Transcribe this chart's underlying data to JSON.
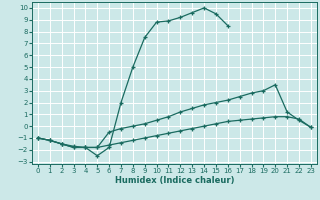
{
  "xlabel": "Humidex (Indice chaleur)",
  "bg_color": "#cce8e8",
  "grid_color": "#ffffff",
  "line_color": "#1a6b60",
  "xlim": [
    -0.5,
    23.5
  ],
  "ylim": [
    -3.2,
    10.5
  ],
  "xticks": [
    0,
    1,
    2,
    3,
    4,
    5,
    6,
    7,
    8,
    9,
    10,
    11,
    12,
    13,
    14,
    15,
    16,
    17,
    18,
    19,
    20,
    21,
    22,
    23
  ],
  "yticks": [
    -3,
    -2,
    -1,
    0,
    1,
    2,
    3,
    4,
    5,
    6,
    7,
    8,
    9,
    10
  ],
  "lines": [
    {
      "x": [
        0,
        1,
        2,
        3,
        4,
        5,
        6,
        7,
        8,
        9,
        10,
        11,
        12,
        13,
        14,
        15,
        16
      ],
      "y": [
        -1,
        -1.2,
        -1.5,
        -1.7,
        -1.8,
        -2.5,
        -1.8,
        2.0,
        5.0,
        7.5,
        8.8,
        8.9,
        9.2,
        9.6,
        10.0,
        9.5,
        8.5
      ]
    },
    {
      "x": [
        0,
        1,
        2,
        3,
        4,
        5,
        6,
        7,
        8,
        9,
        10,
        11,
        12,
        13,
        14,
        15,
        16,
        17,
        18,
        19,
        20,
        21,
        22,
        23
      ],
      "y": [
        -1,
        -1.2,
        -1.5,
        -1.8,
        -1.8,
        -1.8,
        -0.5,
        -0.2,
        -0.0,
        0.2,
        0.5,
        0.8,
        1.2,
        1.5,
        1.8,
        2.0,
        2.2,
        2.5,
        2.8,
        3.0,
        3.5,
        1.2,
        0.5,
        -0.1
      ]
    },
    {
      "x": [
        0,
        1,
        2,
        3,
        4,
        5,
        6,
        7,
        8,
        9,
        10,
        11,
        12,
        13,
        14,
        15,
        16,
        17,
        18,
        19,
        20,
        21,
        22,
        23
      ],
      "y": [
        -1,
        -1.2,
        -1.5,
        -1.8,
        -1.8,
        -1.8,
        -1.6,
        -1.4,
        -1.2,
        -1.0,
        -0.8,
        -0.6,
        -0.4,
        -0.2,
        0.0,
        0.2,
        0.4,
        0.5,
        0.6,
        0.7,
        0.8,
        0.8,
        0.6,
        -0.1
      ]
    }
  ]
}
